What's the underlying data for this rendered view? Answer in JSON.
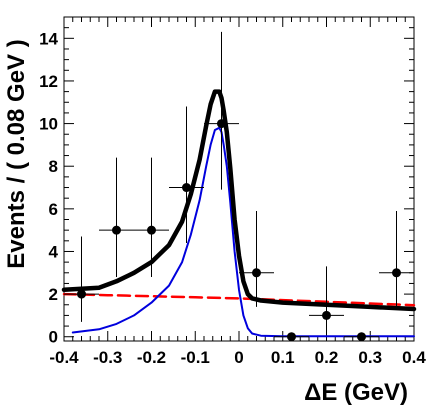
{
  "chart_data": {
    "type": "scatter",
    "title": "",
    "xlabel": "ΔE (GeV)",
    "ylabel": "Events / ( 0.08 GeV )",
    "xlim": [
      -0.4,
      0.4
    ],
    "ylim": [
      -0.2,
      15.0
    ],
    "x_ticks": [
      -0.4,
      -0.3,
      -0.2,
      -0.1,
      0,
      0.1,
      0.2,
      0.3,
      0.4
    ],
    "x_tick_labels": [
      "-0.4",
      "-0.3",
      "-0.2",
      "-0.1",
      "0",
      "0.1",
      "0.2",
      "0.3",
      "0.4"
    ],
    "y_ticks": [
      0,
      2,
      4,
      6,
      8,
      10,
      12,
      14
    ],
    "y_tick_labels": [
      "0",
      "2",
      "4",
      "6",
      "8",
      "10",
      "12",
      "14"
    ],
    "grid": false,
    "legend": "none",
    "data_points": [
      {
        "x": -0.36,
        "y": 2,
        "xerr": 0.04,
        "yerr_low": 1.3,
        "yerr_high": 2.7
      },
      {
        "x": -0.28,
        "y": 5,
        "xerr": 0.04,
        "yerr_low": 2.2,
        "yerr_high": 3.4
      },
      {
        "x": -0.2,
        "y": 5,
        "xerr": 0.04,
        "yerr_low": 2.2,
        "yerr_high": 3.4
      },
      {
        "x": -0.12,
        "y": 7,
        "xerr": 0.04,
        "yerr_low": 2.6,
        "yerr_high": 3.8
      },
      {
        "x": -0.04,
        "y": 10,
        "xerr": 0.04,
        "yerr_low": 3.1,
        "yerr_high": 4.3
      },
      {
        "x": 0.04,
        "y": 3,
        "xerr": 0.04,
        "yerr_low": 1.6,
        "yerr_high": 2.9
      },
      {
        "x": 0.12,
        "y": 0,
        "xerr": 0.04,
        "yerr_low": 0,
        "yerr_high": 0
      },
      {
        "x": 0.2,
        "y": 1,
        "xerr": 0.04,
        "yerr_low": 0.8,
        "yerr_high": 2.3
      },
      {
        "x": 0.28,
        "y": 0,
        "xerr": 0.04,
        "yerr_low": 0,
        "yerr_high": 0
      },
      {
        "x": 0.36,
        "y": 3,
        "xerr": 0.04,
        "yerr_low": 1.6,
        "yerr_high": 2.9
      }
    ],
    "series": [
      {
        "style": "dashed",
        "color": "#ff0000",
        "x": [
          -0.4,
          -0.3,
          -0.2,
          -0.1,
          0,
          0.1,
          0.2,
          0.3,
          0.4
        ],
        "y": [
          2.0,
          1.95,
          1.9,
          1.85,
          1.8,
          1.72,
          1.64,
          1.56,
          1.48
        ]
      },
      {
        "style": "solid-thin",
        "color": "#0000dd",
        "x": [
          -0.38,
          -0.32,
          -0.28,
          -0.24,
          -0.2,
          -0.16,
          -0.13,
          -0.11,
          -0.09,
          -0.075,
          -0.065,
          -0.055,
          -0.045,
          -0.04,
          -0.035,
          -0.028,
          -0.02,
          -0.01,
          0.0,
          0.01,
          0.02,
          0.03,
          0.05,
          0.1,
          0.2,
          0.3,
          0.4
        ],
        "y": [
          0.2,
          0.35,
          0.6,
          1.0,
          1.6,
          2.4,
          3.5,
          4.8,
          6.4,
          8.0,
          9.0,
          9.7,
          9.8,
          9.6,
          9.0,
          8.0,
          6.3,
          4.0,
          2.2,
          1.0,
          0.4,
          0.15,
          0.05,
          0.02,
          0.02,
          0.02,
          0.02
        ]
      },
      {
        "style": "solid-thick",
        "color": "#000000",
        "x": [
          -0.4,
          -0.32,
          -0.28,
          -0.24,
          -0.2,
          -0.16,
          -0.13,
          -0.11,
          -0.09,
          -0.075,
          -0.065,
          -0.055,
          -0.045,
          -0.04,
          -0.035,
          -0.028,
          -0.02,
          -0.01,
          0.0,
          0.01,
          0.02,
          0.03,
          0.05,
          0.1,
          0.2,
          0.3,
          0.4
        ],
        "y": [
          2.2,
          2.3,
          2.6,
          3.0,
          3.5,
          4.3,
          5.4,
          6.7,
          8.3,
          9.9,
          10.9,
          11.5,
          11.5,
          11.2,
          10.6,
          9.6,
          7.9,
          5.5,
          3.8,
          2.6,
          2.0,
          1.8,
          1.7,
          1.6,
          1.5,
          1.4,
          1.3
        ]
      }
    ]
  }
}
